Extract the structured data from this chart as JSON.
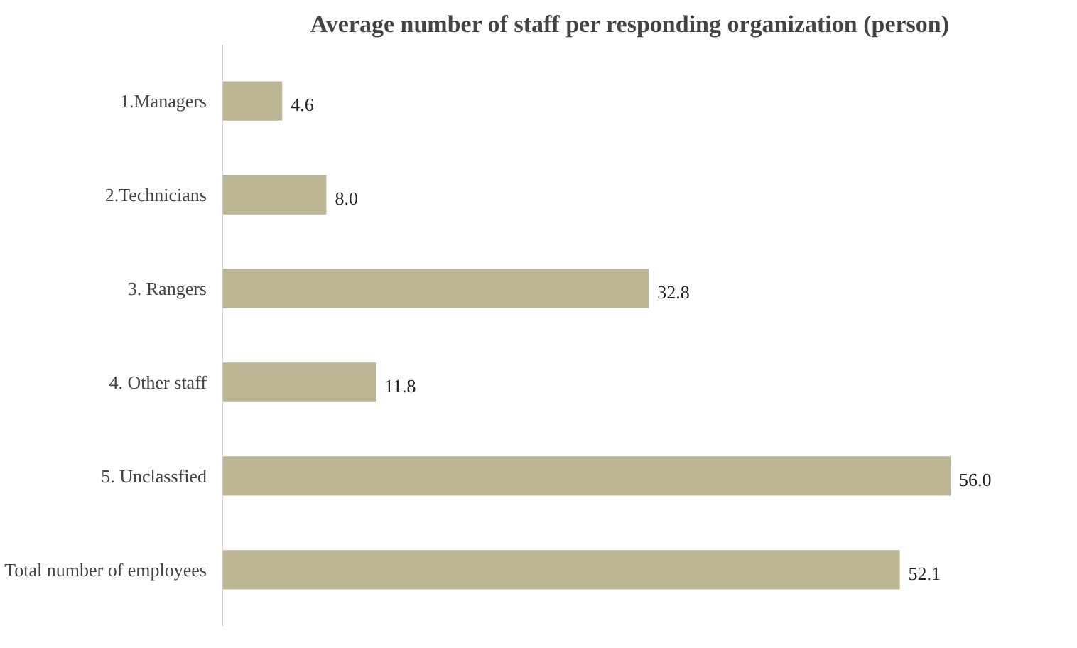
{
  "chart_data": {
    "type": "bar",
    "orientation": "horizontal",
    "title": "Average number of staff per responding organization (person)",
    "categories": [
      "1.Managers",
      "2.Technicians",
      "3. Rangers",
      "4. Other staff",
      "5. Unclassfied",
      "Total number of employees"
    ],
    "values": [
      4.6,
      8.0,
      32.8,
      11.8,
      56.0,
      52.1
    ],
    "value_labels": [
      "4.6",
      "8.0",
      "32.8",
      "11.8",
      "56.0",
      "52.1"
    ],
    "color": "#bcb594",
    "data_labels": true,
    "grid": false
  }
}
